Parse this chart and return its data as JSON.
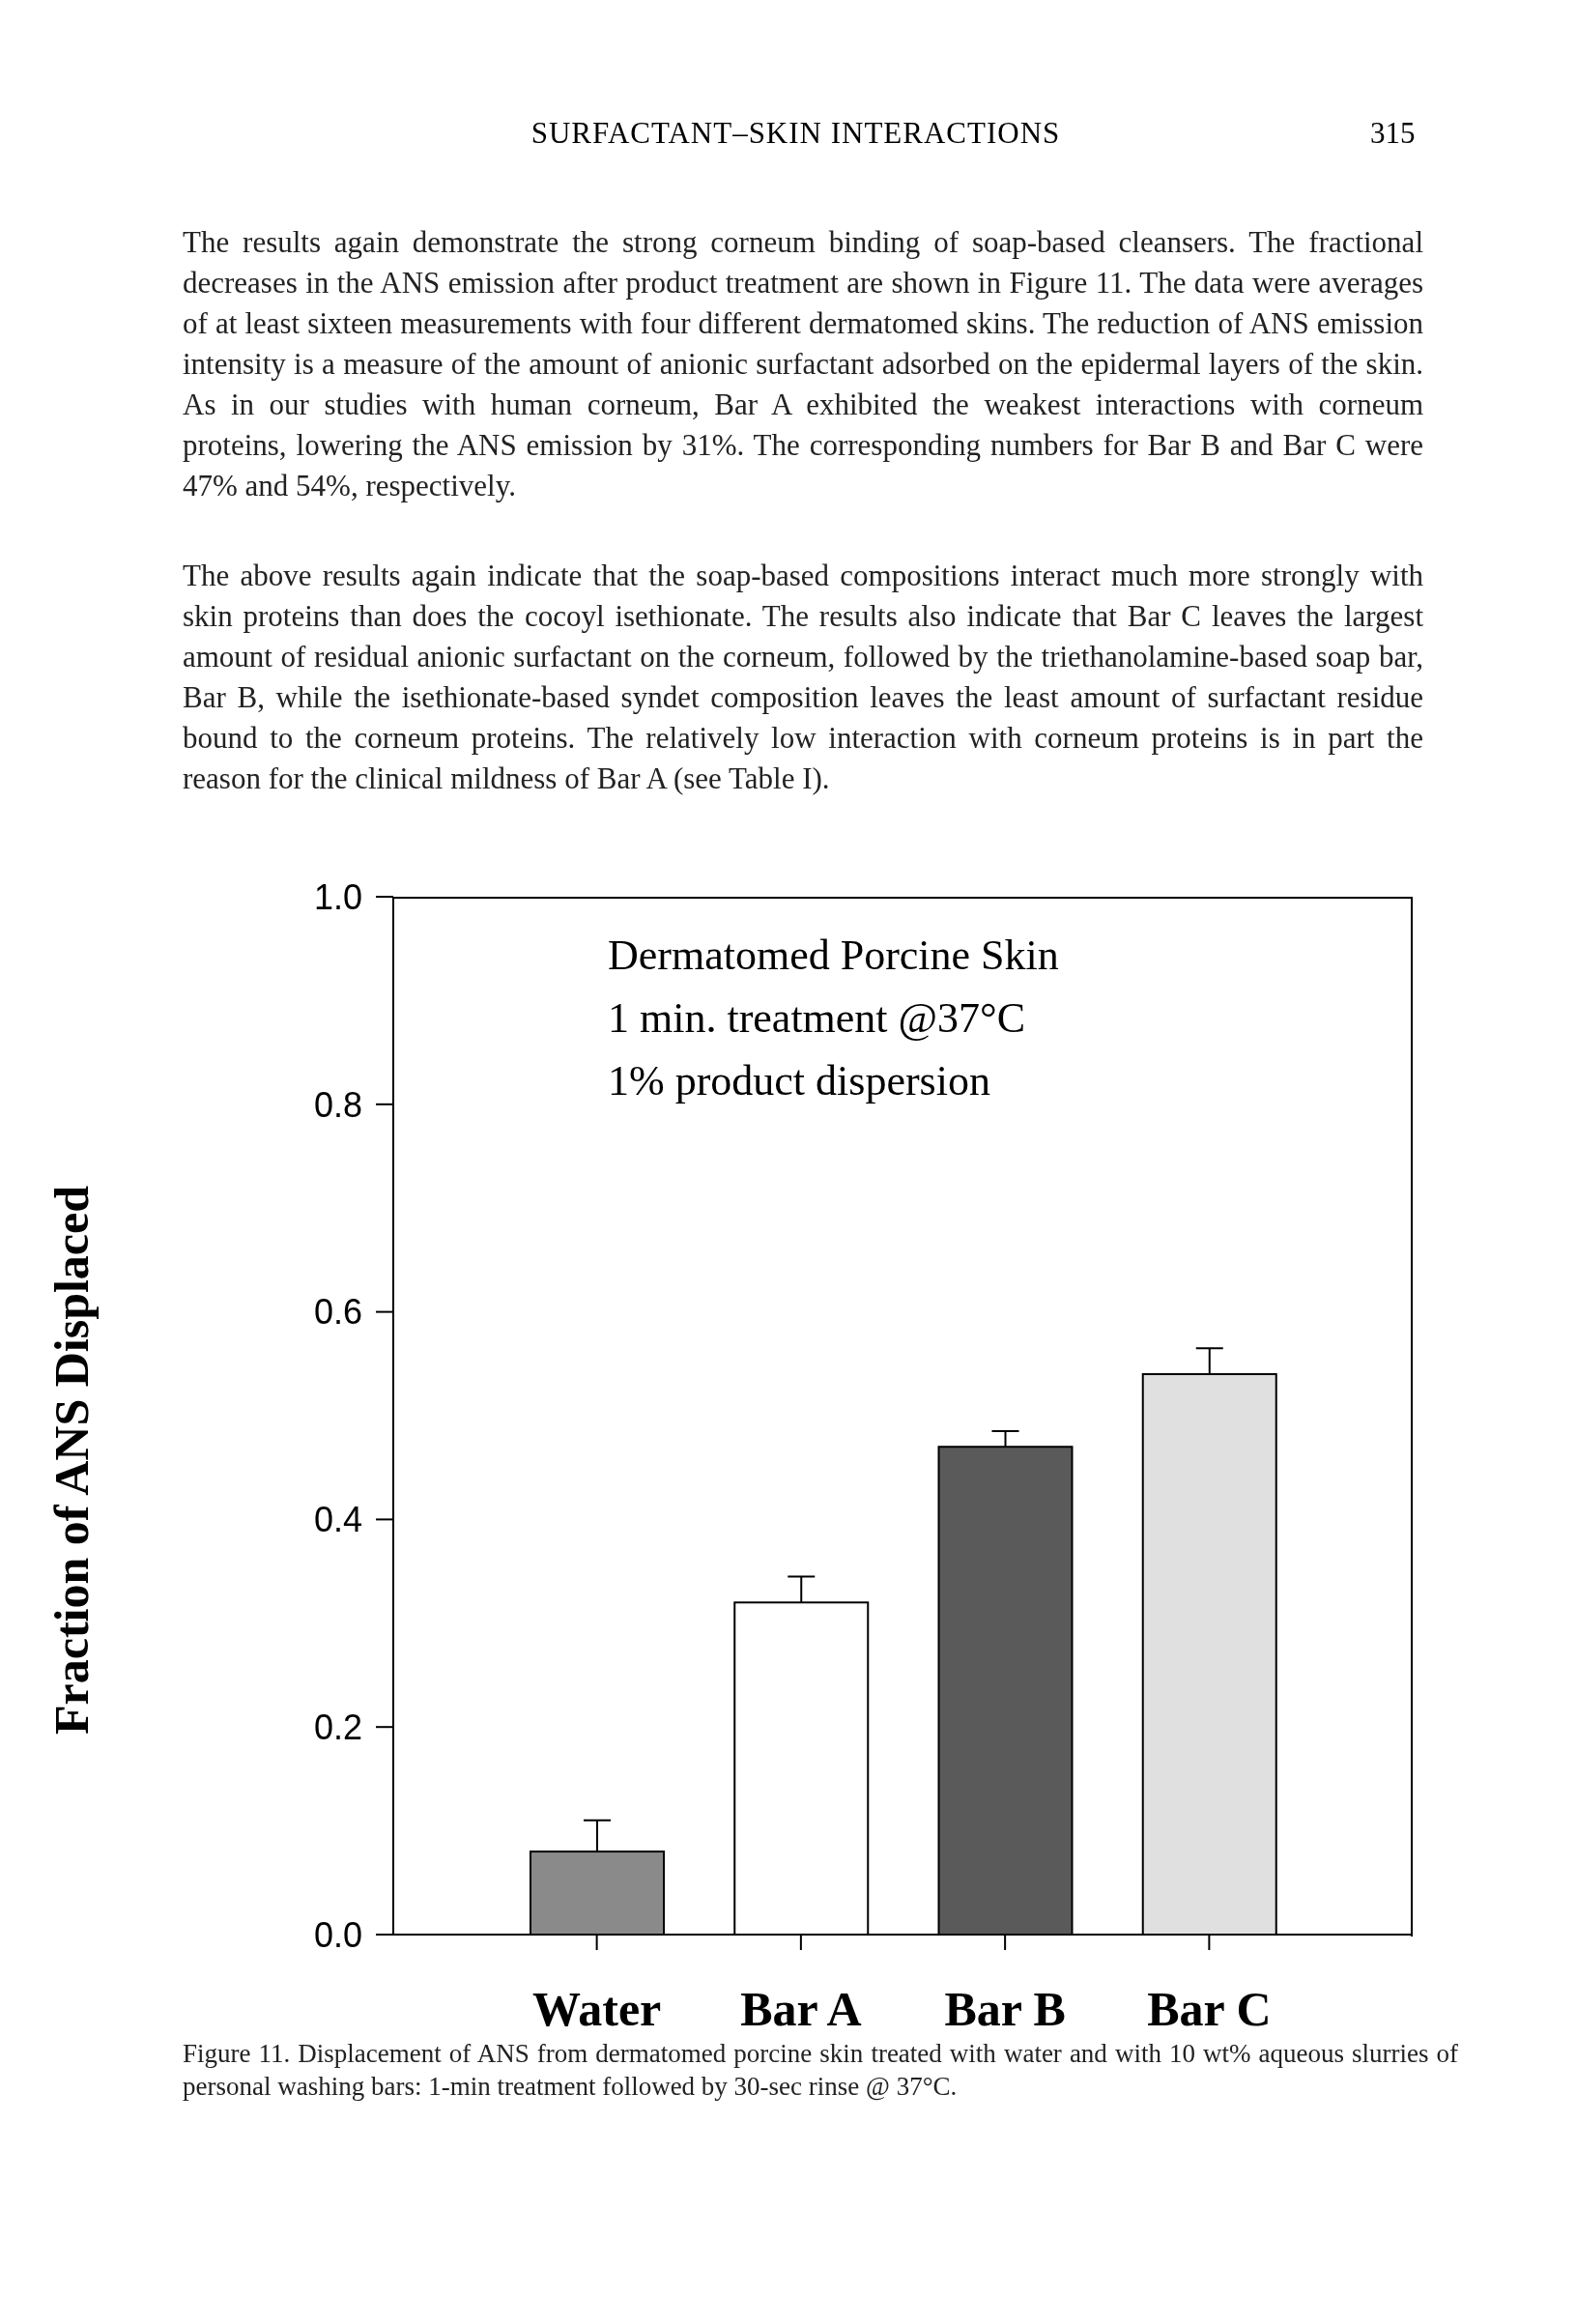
{
  "chart_data": {
    "type": "bar",
    "ylabel": "Fraction of ANS Displaced",
    "categories": [
      "Water",
      "Bar A",
      "Bar B",
      "Bar C"
    ],
    "values": [
      0.08,
      0.32,
      0.47,
      0.54
    ],
    "colors": [
      "#8a8a8a",
      "#ffffff",
      "#5a5a5a",
      "#e0e0e0"
    ],
    "errors": [
      [
        0.08,
        0.11
      ],
      [
        0.32,
        0.345
      ],
      [
        0.47,
        0.485
      ],
      [
        0.54,
        0.565
      ]
    ],
    "ylim": [
      0,
      1
    ],
    "yticks": [
      {
        "value": 0,
        "label": "0.0"
      },
      {
        "value": 0.2,
        "label": "0.2"
      },
      {
        "value": 0.4,
        "label": "0.4"
      },
      {
        "value": 0.6,
        "label": "0.6"
      },
      {
        "value": 0.8,
        "label": "0.8"
      },
      {
        "value": 1,
        "label": "1.0"
      }
    ],
    "grid": false,
    "legend": false,
    "annotations": [
      "SURFACTANT–SKIN INTERACTIONS",
      "315",
      "The results again demonstrate the strong corneum binding of soap-based cleansers. The fractional decreases in the ANS emission after product treatment are shown in Figure 11. The data were averages of at least sixteen measurements with four different dermatomed skins. The reduction of ANS emission intensity is a measure of the amount of anionic surfactant adsorbed on the epidermal layers of the skin. As in our studies with human corneum, Bar A exhibited the weakest interactions with corneum proteins, lowering the ANS emission by 31%. The corresponding numbers for Bar B and Bar C were 47% and 54%, respectively.",
      "The above results again indicate that the soap-based compositions interact much more strongly with skin proteins than does the cocoyl isethionate. The results also indicate that Bar C leaves the largest amount of residual anionic surfactant on the corneum, followed by the triethanolamine-based soap bar, Bar B, while the isethionate-based syndet composition leaves the least amount of surfactant residue bound to the corneum proteins. The relatively low interaction with corneum proteins is in part the reason for the clinical mildness of Bar A (see Table I).",
      "Dermatomed Porcine Skin",
      "1 min. treatment @37°C",
      "1% product dispersion",
      "Figure 11. Displacement of ANS from dermatomed porcine skin treated with water and with 10 wt% aqueous slurries of personal washing bars: 1-min treatment followed by 30-sec rinse @ 37°C."
    ]
  }
}
